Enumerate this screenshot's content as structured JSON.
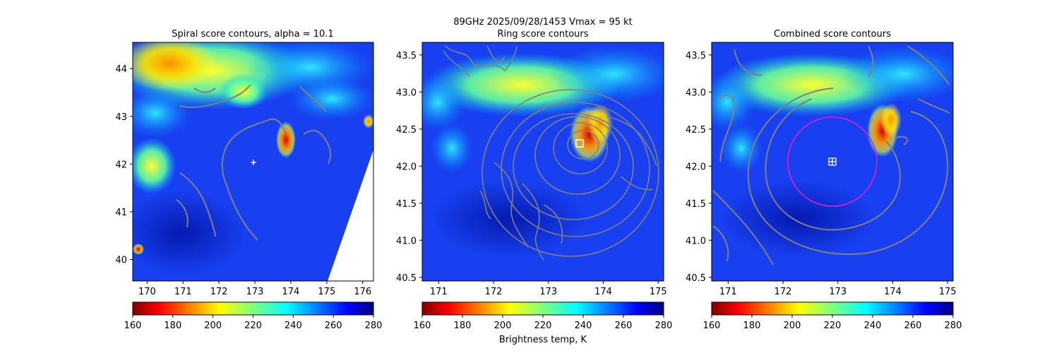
{
  "header": {
    "line1": "89GHz  2025/09/28/1453    Vmax = 95 kt"
  },
  "colors": {
    "contour": "#808080",
    "ring_circle": "#e020d0",
    "center_marker": "#ffffff",
    "background_field": "#1840f0"
  },
  "colorbar_scale": {
    "vmin": 160,
    "vmax": 280,
    "colormap": "jet (reversed)",
    "ticks": [
      "160",
      "180",
      "200",
      "220",
      "240",
      "260",
      "280"
    ]
  },
  "colorbar_label": "Brightness temp, K",
  "chart_data": [
    {
      "type": "heatmap",
      "title": "Spiral score contours, alpha = 10.1",
      "xlim": [
        169.6,
        176.3
      ],
      "ylim": [
        39.55,
        44.55
      ],
      "xticks": [
        "170",
        "171",
        "172",
        "173",
        "174",
        "175",
        "176"
      ],
      "yticks": [
        "40",
        "41",
        "42",
        "43",
        "44"
      ],
      "xlabel": "",
      "ylabel": "",
      "colorbar_ticks": [
        "160",
        "180",
        "200",
        "220",
        "240",
        "260",
        "280"
      ],
      "center_marker": {
        "symbol": "+",
        "x": 172.95,
        "y": 42.05
      },
      "overlay": "spiral score contours",
      "swath_edge_lower_right": [
        [
          175.0,
          39.55
        ],
        [
          176.3,
          42.3
        ]
      ],
      "warm_features": [
        {
          "label": "northwest cloud band",
          "min_temp_K": 180
        },
        {
          "label": "eyewall convection",
          "x": 173.8,
          "y": 42.4,
          "min_temp_K": 175
        },
        {
          "label": "southwest edge pixel",
          "x": 169.8,
          "y": 40.2,
          "min_temp_K": 175
        }
      ]
    },
    {
      "type": "heatmap",
      "title": "Ring score contours",
      "xlim": [
        170.7,
        175.1
      ],
      "ylim": [
        40.45,
        43.67
      ],
      "xticks": [
        "171",
        "172",
        "173",
        "174",
        "175"
      ],
      "yticks": [
        "40.5",
        "41.0",
        "41.5",
        "42.0",
        "42.5",
        "43.0",
        "43.5"
      ],
      "xlabel": "",
      "ylabel": "",
      "colorbar_ticks": [
        "160",
        "180",
        "200",
        "220",
        "240",
        "260",
        "280"
      ],
      "center_marker": {
        "symbol": "square",
        "x": 173.6,
        "y": 42.3
      },
      "overlay": "ring score contours",
      "warm_features": [
        {
          "label": "northern cloud band",
          "min_temp_K": 200
        },
        {
          "label": "eyewall convection",
          "x": 173.8,
          "y": 42.4,
          "min_temp_K": 175
        }
      ]
    },
    {
      "type": "heatmap",
      "title": "Combined score contours",
      "xlim": [
        170.7,
        175.1
      ],
      "ylim": [
        40.45,
        43.67
      ],
      "xticks": [
        "171",
        "172",
        "173",
        "174",
        "175"
      ],
      "yticks": [
        "40.5",
        "41.0",
        "41.5",
        "42.0",
        "42.5",
        "43.0",
        "43.5"
      ],
      "xlabel": "",
      "ylabel": "",
      "colorbar_ticks": [
        "160",
        "180",
        "200",
        "220",
        "240",
        "260",
        "280"
      ],
      "center_marker": {
        "symbol": "boxed-plus",
        "x": 172.95,
        "y": 42.05
      },
      "ring": {
        "center_x": 172.95,
        "center_y": 42.05,
        "radius_lon": 0.8
      },
      "overlay": "combined score contours",
      "warm_features": [
        {
          "label": "northern cloud band",
          "min_temp_K": 200
        },
        {
          "label": "eyewall convection",
          "x": 173.8,
          "y": 42.4,
          "min_temp_K": 175
        }
      ]
    }
  ]
}
